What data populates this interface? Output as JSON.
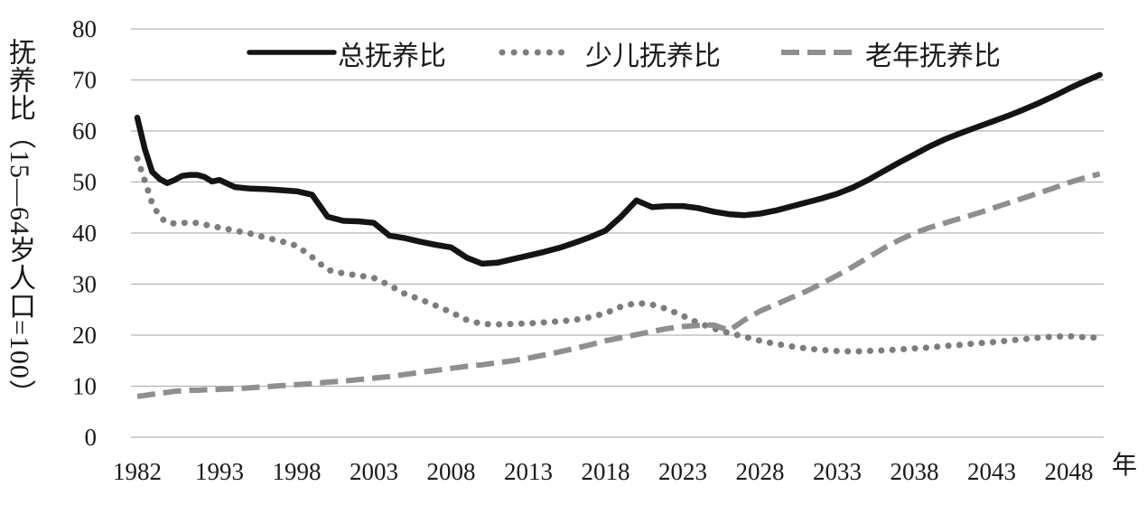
{
  "chart_data": {
    "type": "line",
    "title": "",
    "ylabel": "抚养比（15—64岁人口=100）",
    "xlabel": "年",
    "ylim": [
      0,
      80
    ],
    "y_ticks": [
      0,
      10,
      20,
      30,
      40,
      50,
      60,
      70,
      80
    ],
    "x_tick_years": [
      1982,
      1993,
      1998,
      2003,
      2008,
      2013,
      2018,
      2023,
      2028,
      2033,
      2038,
      2043,
      2048
    ],
    "grid": "horizontal-only",
    "legend_position": "top-center",
    "axis_note": "x axis compressed between 1982 and 1993; 5-year tick spacing afterwards",
    "colors": {
      "total": "#141414",
      "child": "#7d7d7d",
      "elderly": "#8f8f8f",
      "gridline": "#b3b3b3"
    },
    "series": [
      {
        "name": "总抚养比",
        "style": "solid",
        "color": "#141414",
        "points": [
          [
            1982,
            62.6
          ],
          [
            1983,
            56.5
          ],
          [
            1984,
            52.0
          ],
          [
            1985,
            50.6
          ],
          [
            1986,
            49.8
          ],
          [
            1987,
            50.4
          ],
          [
            1988,
            51.2
          ],
          [
            1989,
            51.4
          ],
          [
            1990,
            51.4
          ],
          [
            1991,
            51.0
          ],
          [
            1992,
            50.1
          ],
          [
            1993,
            50.4
          ],
          [
            1994,
            49.0
          ],
          [
            1995,
            48.7
          ],
          [
            1996,
            48.6
          ],
          [
            1997,
            48.4
          ],
          [
            1998,
            48.2
          ],
          [
            1999,
            47.5
          ],
          [
            2000,
            43.2
          ],
          [
            2001,
            42.4
          ],
          [
            2002,
            42.3
          ],
          [
            2003,
            42.0
          ],
          [
            2004,
            39.5
          ],
          [
            2005,
            39.0
          ],
          [
            2006,
            38.3
          ],
          [
            2007,
            37.7
          ],
          [
            2008,
            37.2
          ],
          [
            2009,
            35.2
          ],
          [
            2010,
            34.0
          ],
          [
            2011,
            34.2
          ],
          [
            2012,
            34.9
          ],
          [
            2013,
            35.6
          ],
          [
            2014,
            36.3
          ],
          [
            2015,
            37.1
          ],
          [
            2016,
            38.1
          ],
          [
            2017,
            39.2
          ],
          [
            2018,
            40.5
          ],
          [
            2019,
            43.2
          ],
          [
            2020,
            46.4
          ],
          [
            2021,
            45.1
          ],
          [
            2022,
            45.3
          ],
          [
            2023,
            45.3
          ],
          [
            2024,
            44.9
          ],
          [
            2025,
            44.2
          ],
          [
            2026,
            43.7
          ],
          [
            2027,
            43.5
          ],
          [
            2028,
            43.8
          ],
          [
            2029,
            44.4
          ],
          [
            2030,
            45.2
          ],
          [
            2031,
            46.0
          ],
          [
            2032,
            46.8
          ],
          [
            2033,
            47.7
          ],
          [
            2034,
            48.9
          ],
          [
            2035,
            50.4
          ],
          [
            2036,
            52.1
          ],
          [
            2037,
            53.8
          ],
          [
            2038,
            55.4
          ],
          [
            2039,
            57.0
          ],
          [
            2040,
            58.4
          ],
          [
            2041,
            59.6
          ],
          [
            2042,
            60.7
          ],
          [
            2043,
            61.8
          ],
          [
            2044,
            62.9
          ],
          [
            2045,
            64.1
          ],
          [
            2046,
            65.4
          ],
          [
            2047,
            66.8
          ],
          [
            2048,
            68.3
          ],
          [
            2049,
            69.7
          ],
          [
            2050,
            71.0
          ]
        ]
      },
      {
        "name": "少儿抚养比",
        "style": "dotted",
        "color": "#7d7d7d",
        "points": [
          [
            1982,
            54.6
          ],
          [
            1983,
            50.3
          ],
          [
            1984,
            45.8
          ],
          [
            1985,
            43.2
          ],
          [
            1986,
            42.0
          ],
          [
            1987,
            41.9
          ],
          [
            1988,
            42.0
          ],
          [
            1989,
            42.0
          ],
          [
            1990,
            42.0
          ],
          [
            1991,
            41.7
          ],
          [
            1992,
            41.3
          ],
          [
            1993,
            41.1
          ],
          [
            1994,
            40.5
          ],
          [
            1995,
            39.9
          ],
          [
            1996,
            39.1
          ],
          [
            1997,
            38.4
          ],
          [
            1998,
            37.5
          ],
          [
            1999,
            35.3
          ],
          [
            2000,
            32.8
          ],
          [
            2001,
            32.1
          ],
          [
            2002,
            31.7
          ],
          [
            2003,
            31.2
          ],
          [
            2004,
            29.8
          ],
          [
            2005,
            28.1
          ],
          [
            2006,
            27.0
          ],
          [
            2007,
            25.8
          ],
          [
            2008,
            24.5
          ],
          [
            2009,
            23.0
          ],
          [
            2010,
            22.2
          ],
          [
            2011,
            22.1
          ],
          [
            2012,
            22.2
          ],
          [
            2013,
            22.3
          ],
          [
            2014,
            22.5
          ],
          [
            2015,
            22.7
          ],
          [
            2016,
            23.0
          ],
          [
            2017,
            23.5
          ],
          [
            2018,
            24.3
          ],
          [
            2019,
            25.6
          ],
          [
            2020,
            26.3
          ],
          [
            2021,
            26.0
          ],
          [
            2022,
            25.1
          ],
          [
            2023,
            23.8
          ],
          [
            2024,
            22.4
          ],
          [
            2025,
            21.3
          ],
          [
            2026,
            20.4
          ],
          [
            2027,
            19.7
          ],
          [
            2028,
            18.9
          ],
          [
            2029,
            18.3
          ],
          [
            2030,
            17.8
          ],
          [
            2031,
            17.4
          ],
          [
            2032,
            17.1
          ],
          [
            2033,
            16.9
          ],
          [
            2034,
            16.8
          ],
          [
            2035,
            16.9
          ],
          [
            2036,
            17.0
          ],
          [
            2037,
            17.2
          ],
          [
            2038,
            17.4
          ],
          [
            2039,
            17.6
          ],
          [
            2040,
            17.9
          ],
          [
            2041,
            18.1
          ],
          [
            2042,
            18.4
          ],
          [
            2043,
            18.6
          ],
          [
            2044,
            18.9
          ],
          [
            2045,
            19.2
          ],
          [
            2046,
            19.5
          ],
          [
            2047,
            19.7
          ],
          [
            2048,
            19.8
          ],
          [
            2049,
            19.6
          ],
          [
            2050,
            19.5
          ]
        ]
      },
      {
        "name": "老年抚养比",
        "style": "dashed",
        "color": "#8f8f8f",
        "points": [
          [
            1982,
            8.0
          ],
          [
            1983,
            8.2
          ],
          [
            1984,
            8.4
          ],
          [
            1985,
            8.6
          ],
          [
            1986,
            8.8
          ],
          [
            1987,
            9.0
          ],
          [
            1988,
            9.1
          ],
          [
            1989,
            9.2
          ],
          [
            1990,
            9.2
          ],
          [
            1991,
            9.3
          ],
          [
            1992,
            9.3
          ],
          [
            1993,
            9.4
          ],
          [
            1994,
            9.5
          ],
          [
            1995,
            9.7
          ],
          [
            1996,
            9.9
          ],
          [
            1997,
            10.1
          ],
          [
            1998,
            10.3
          ],
          [
            1999,
            10.5
          ],
          [
            2000,
            10.8
          ],
          [
            2001,
            11.0
          ],
          [
            2002,
            11.3
          ],
          [
            2003,
            11.6
          ],
          [
            2004,
            11.9
          ],
          [
            2005,
            12.3
          ],
          [
            2006,
            12.7
          ],
          [
            2007,
            13.1
          ],
          [
            2008,
            13.5
          ],
          [
            2009,
            13.9
          ],
          [
            2010,
            14.2
          ],
          [
            2011,
            14.6
          ],
          [
            2012,
            15.0
          ],
          [
            2013,
            15.5
          ],
          [
            2014,
            16.1
          ],
          [
            2015,
            16.7
          ],
          [
            2016,
            17.4
          ],
          [
            2017,
            18.1
          ],
          [
            2018,
            18.9
          ],
          [
            2019,
            19.5
          ],
          [
            2020,
            20.1
          ],
          [
            2021,
            20.7
          ],
          [
            2022,
            21.3
          ],
          [
            2023,
            21.7
          ],
          [
            2024,
            21.9
          ],
          [
            2025,
            22.0
          ],
          [
            2026,
            20.9
          ],
          [
            2027,
            23.0
          ],
          [
            2028,
            24.7
          ],
          [
            2029,
            26.0
          ],
          [
            2030,
            27.3
          ],
          [
            2031,
            28.6
          ],
          [
            2032,
            30.1
          ],
          [
            2033,
            31.7
          ],
          [
            2034,
            33.4
          ],
          [
            2035,
            35.2
          ],
          [
            2036,
            37.0
          ],
          [
            2037,
            38.6
          ],
          [
            2038,
            40.0
          ],
          [
            2039,
            41.1
          ],
          [
            2040,
            42.0
          ],
          [
            2041,
            42.9
          ],
          [
            2042,
            43.8
          ],
          [
            2043,
            44.8
          ],
          [
            2044,
            45.8
          ],
          [
            2045,
            46.8
          ],
          [
            2046,
            47.8
          ],
          [
            2047,
            48.8
          ],
          [
            2048,
            49.9
          ],
          [
            2049,
            50.8
          ],
          [
            2050,
            51.6
          ]
        ]
      }
    ]
  }
}
